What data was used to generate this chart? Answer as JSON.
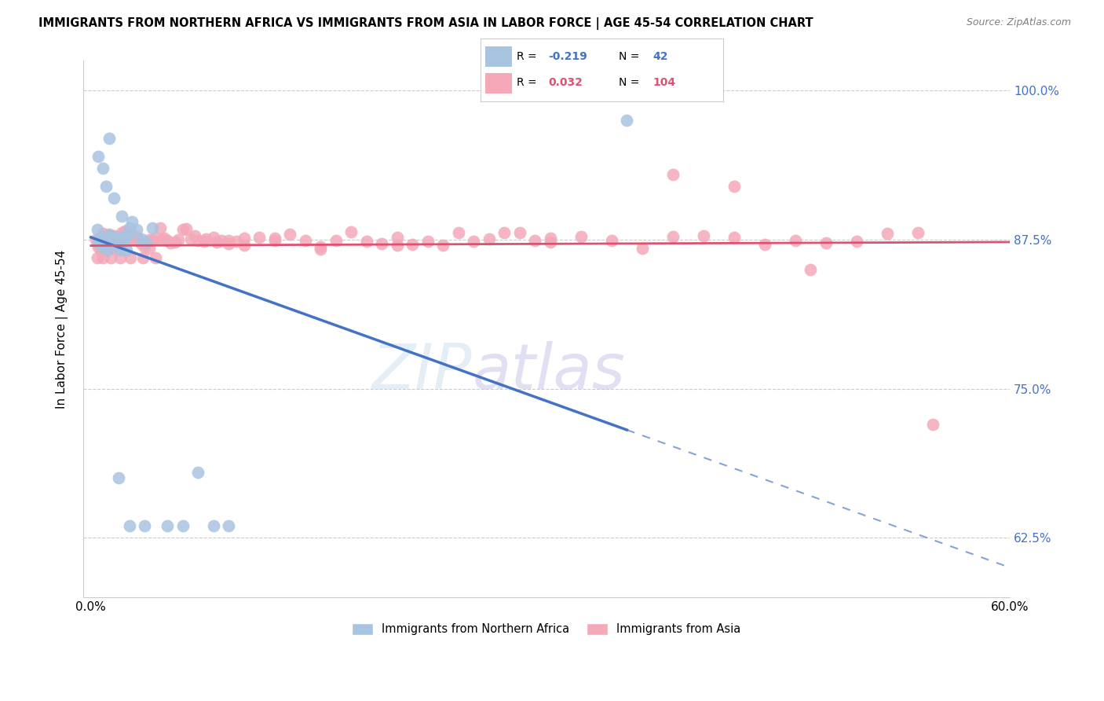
{
  "title": "IMMIGRANTS FROM NORTHERN AFRICA VS IMMIGRANTS FROM ASIA IN LABOR FORCE | AGE 45-54 CORRELATION CHART",
  "source": "Source: ZipAtlas.com",
  "ylabel": "In Labor Force | Age 45-54",
  "xlim": [
    0.0,
    0.6
  ],
  "ylim": [
    0.575,
    1.025
  ],
  "yticks": [
    0.625,
    0.75,
    0.875,
    1.0
  ],
  "ytick_labels": [
    "62.5%",
    "75.0%",
    "87.5%",
    "100.0%"
  ],
  "xticks": [
    0.0,
    0.1,
    0.2,
    0.3,
    0.4,
    0.5,
    0.6
  ],
  "xtick_labels": [
    "0.0%",
    "",
    "",
    "",
    "",
    "",
    "60.0%"
  ],
  "blue_R": -0.219,
  "blue_N": 42,
  "pink_R": 0.032,
  "pink_N": 104,
  "blue_color": "#a8c4e0",
  "pink_color": "#f4a8b8",
  "blue_line_color": "#4472c4",
  "pink_line_color": "#e05070",
  "legend_label_blue": "Immigrants from Northern Africa",
  "legend_label_pink": "Immigrants from Asia",
  "blue_scatter_x": [
    0.004,
    0.005,
    0.006,
    0.007,
    0.008,
    0.009,
    0.01,
    0.011,
    0.012,
    0.013,
    0.014,
    0.015,
    0.016,
    0.017,
    0.018,
    0.019,
    0.02,
    0.021,
    0.022,
    0.023,
    0.025,
    0.027,
    0.03,
    0.033,
    0.036,
    0.04,
    0.01,
    0.015,
    0.02,
    0.025,
    0.005,
    0.008,
    0.012,
    0.018,
    0.025,
    0.035,
    0.05,
    0.06,
    0.07,
    0.08,
    0.09,
    0.35
  ],
  "blue_scatter_y": [
    0.875,
    0.875,
    0.876,
    0.874,
    0.873,
    0.877,
    0.876,
    0.875,
    0.874,
    0.875,
    0.876,
    0.875,
    0.874,
    0.876,
    0.875,
    0.874,
    0.875,
    0.876,
    0.875,
    0.874,
    0.885,
    0.89,
    0.875,
    0.875,
    0.875,
    0.875,
    0.92,
    0.91,
    0.895,
    0.88,
    0.945,
    0.935,
    0.96,
    0.675,
    0.635,
    0.635,
    0.635,
    0.635,
    0.68,
    0.635,
    0.635,
    0.975
  ],
  "pink_scatter_x": [
    0.003,
    0.005,
    0.006,
    0.007,
    0.008,
    0.009,
    0.01,
    0.011,
    0.012,
    0.013,
    0.014,
    0.015,
    0.016,
    0.017,
    0.018,
    0.019,
    0.02,
    0.021,
    0.022,
    0.023,
    0.025,
    0.027,
    0.029,
    0.031,
    0.033,
    0.035,
    0.038,
    0.04,
    0.042,
    0.045,
    0.048,
    0.05,
    0.055,
    0.06,
    0.065,
    0.07,
    0.075,
    0.08,
    0.085,
    0.09,
    0.095,
    0.1,
    0.11,
    0.12,
    0.13,
    0.14,
    0.15,
    0.16,
    0.17,
    0.18,
    0.19,
    0.2,
    0.21,
    0.22,
    0.23,
    0.24,
    0.25,
    0.26,
    0.27,
    0.28,
    0.29,
    0.3,
    0.32,
    0.34,
    0.36,
    0.38,
    0.4,
    0.42,
    0.44,
    0.46,
    0.48,
    0.5,
    0.52,
    0.54,
    0.004,
    0.006,
    0.008,
    0.01,
    0.013,
    0.016,
    0.019,
    0.022,
    0.026,
    0.03,
    0.034,
    0.038,
    0.042,
    0.047,
    0.052,
    0.057,
    0.062,
    0.068,
    0.074,
    0.082,
    0.09,
    0.1,
    0.12,
    0.15,
    0.2,
    0.3,
    0.38,
    0.42,
    0.47,
    0.55
  ],
  "pink_scatter_y": [
    0.875,
    0.875,
    0.875,
    0.875,
    0.876,
    0.874,
    0.875,
    0.876,
    0.875,
    0.874,
    0.875,
    0.876,
    0.875,
    0.874,
    0.875,
    0.876,
    0.875,
    0.874,
    0.875,
    0.876,
    0.875,
    0.876,
    0.875,
    0.874,
    0.875,
    0.876,
    0.875,
    0.874,
    0.875,
    0.876,
    0.875,
    0.874,
    0.875,
    0.876,
    0.875,
    0.874,
    0.875,
    0.876,
    0.875,
    0.874,
    0.875,
    0.876,
    0.875,
    0.875,
    0.875,
    0.876,
    0.875,
    0.875,
    0.875,
    0.875,
    0.875,
    0.875,
    0.875,
    0.875,
    0.875,
    0.875,
    0.875,
    0.875,
    0.875,
    0.875,
    0.875,
    0.875,
    0.875,
    0.875,
    0.875,
    0.875,
    0.875,
    0.875,
    0.875,
    0.875,
    0.875,
    0.875,
    0.875,
    0.875,
    0.86,
    0.87,
    0.86,
    0.87,
    0.86,
    0.875,
    0.86,
    0.875,
    0.86,
    0.875,
    0.86,
    0.875,
    0.86,
    0.875,
    0.875,
    0.875,
    0.875,
    0.875,
    0.875,
    0.875,
    0.875,
    0.875,
    0.875,
    0.875,
    0.875,
    0.875,
    0.93,
    0.92,
    0.85,
    0.72
  ]
}
